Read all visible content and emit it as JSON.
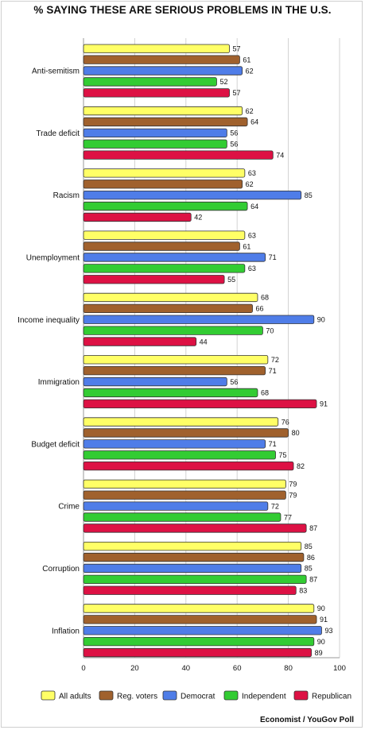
{
  "chart_data": {
    "type": "bar",
    "orientation": "horizontal",
    "title": "% SAYING THESE ARE SERIOUS PROBLEMS IN THE U.S.",
    "source": "Economist / YouGov Poll",
    "categories": [
      "Anti-semitism",
      "Trade deficit",
      "Racism",
      "Unemployment",
      "Income inequality",
      "Immigration",
      "Budget deficit",
      "Crime",
      "Corruption",
      "Inflation"
    ],
    "series": [
      {
        "name": "All adults",
        "color": "#ffff66",
        "values": [
          57,
          62,
          63,
          63,
          68,
          72,
          76,
          79,
          85,
          90
        ]
      },
      {
        "name": "Reg. voters",
        "color": "#a0612d",
        "values": [
          61,
          64,
          62,
          61,
          66,
          71,
          80,
          79,
          86,
          91
        ]
      },
      {
        "name": "Democrat",
        "color": "#4f7de8",
        "values": [
          62,
          56,
          85,
          71,
          90,
          56,
          71,
          72,
          85,
          93
        ]
      },
      {
        "name": "Independent",
        "color": "#33cc33",
        "values": [
          52,
          56,
          64,
          63,
          70,
          68,
          75,
          77,
          87,
          90
        ]
      },
      {
        "name": "Republican",
        "color": "#dd1144",
        "values": [
          57,
          74,
          42,
          55,
          44,
          91,
          82,
          87,
          83,
          89
        ]
      }
    ],
    "xlim": [
      0,
      100
    ],
    "xticks": [
      0,
      20,
      40,
      60,
      80,
      100
    ],
    "grid": true,
    "legend": "bottom"
  }
}
